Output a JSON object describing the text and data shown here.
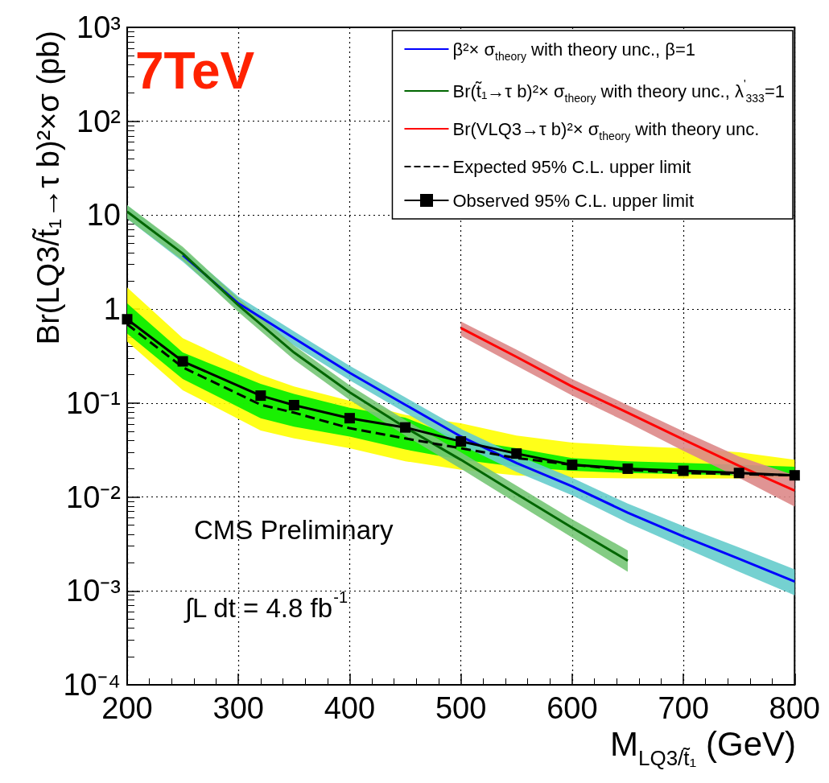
{
  "chart_data": {
    "type": "line",
    "xlabel": "M$_{LQ3/t̃₁}$ (GeV)",
    "ylabel": "Br(LQ3/t̃₁→τ b)²×σ (pb)",
    "annotations": [
      "7TeV",
      "CMS Preliminary",
      "∫L dt = 4.8 fb$^{-1}$"
    ],
    "log": "y",
    "grid": true,
    "legend": "top right",
    "xlim": [
      200,
      800
    ],
    "xticks": [
      200,
      300,
      400,
      500,
      600,
      700,
      800
    ],
    "ylim": [
      0.0001,
      1000
    ],
    "yticks": [
      {
        "value": 0.0001,
        "label": "10⁻⁴"
      },
      {
        "value": 0.001,
        "label": "10⁻³"
      },
      {
        "value": 0.01,
        "label": "10⁻²"
      },
      {
        "value": 0.1,
        "label": "10⁻¹"
      },
      1,
      10,
      {
        "value": 100,
        "label": "10²"
      },
      {
        "value": 1000,
        "label": "10³"
      }
    ],
    "series": [
      {
        "type": "area",
        "color": "#ffff00",
        "x": [
          200,
          250,
          320,
          350,
          400,
          450,
          500,
          550,
          600,
          650,
          700,
          750,
          800
        ],
        "values": [
          null,
          null,
          null,
          null,
          null,
          null,
          null,
          null,
          null,
          null,
          null,
          null,
          null
        ],
        "lower": [
          0.45,
          0.137,
          0.051,
          0.042,
          0.033,
          0.024,
          0.0195,
          0.017,
          0.016,
          0.0158,
          0.0157,
          0.0158,
          0.016
        ],
        "upper": [
          1.7,
          0.49,
          0.2,
          0.15,
          0.106,
          0.075,
          0.061,
          0.045,
          0.038,
          0.035,
          0.033,
          0.03,
          0.025
        ]
      },
      {
        "type": "area",
        "color": "#00ee00",
        "x": [
          200,
          250,
          320,
          350,
          400,
          450,
          500,
          550,
          600,
          650,
          700,
          750,
          800
        ],
        "values": [
          null,
          null,
          null,
          null,
          null,
          null,
          null,
          null,
          null,
          null,
          null,
          null,
          null
        ],
        "lower": [
          0.55,
          0.18,
          0.069,
          0.056,
          0.044,
          0.032,
          0.025,
          0.021,
          0.019,
          0.018,
          0.0175,
          0.017,
          0.0165
        ],
        "upper": [
          1.15,
          0.345,
          0.16,
          0.125,
          0.089,
          0.07,
          0.041,
          0.033,
          0.026,
          0.024,
          0.023,
          0.022,
          0.021
        ]
      },
      {
        "type": "area",
        "color": "#66cccc",
        "x": [
          200,
          250,
          300,
          350,
          400,
          450,
          500,
          550,
          600,
          650,
          700,
          750,
          800
        ],
        "values": [
          null,
          null,
          null,
          null,
          null,
          null,
          null,
          null,
          null,
          null,
          null,
          null,
          null
        ],
        "lower": [
          9.2,
          3.2,
          0.97,
          0.41,
          0.175,
          0.079,
          0.036,
          0.0185,
          0.0104,
          0.0053,
          0.0029,
          0.0016,
          0.0009
        ],
        "upper": [
          12.8,
          4.4,
          1.36,
          0.58,
          0.25,
          0.115,
          0.053,
          0.028,
          0.016,
          0.0085,
          0.0049,
          0.0029,
          0.0017
        ]
      },
      {
        "type": "area",
        "color": "#77c777",
        "x": [
          200,
          250,
          300,
          350,
          400,
          450,
          500,
          550,
          600,
          650
        ],
        "values": [
          null,
          null,
          null,
          null,
          null,
          null,
          null,
          null,
          null,
          null
        ],
        "lower": [
          9.2,
          3.3,
          0.93,
          0.29,
          0.108,
          0.045,
          0.02,
          0.0086,
          0.0037,
          0.0016
        ],
        "upper": [
          12.8,
          4.6,
          1.3,
          0.41,
          0.155,
          0.066,
          0.03,
          0.0132,
          0.0058,
          0.0027
        ]
      },
      {
        "type": "area",
        "color": "#dd8888",
        "x": [
          500,
          550,
          600,
          650,
          700,
          750,
          800
        ],
        "values": [
          null,
          null,
          null,
          null,
          null,
          null,
          null
        ],
        "lower": [
          0.52,
          0.25,
          0.12,
          0.062,
          0.031,
          0.016,
          0.0079
        ],
        "upper": [
          0.74,
          0.37,
          0.18,
          0.095,
          0.05,
          0.027,
          0.017
        ]
      },
      {
        "name": "β²× σ$_{theory}$ with theory unc., β=1",
        "color": "#0000ff",
        "marker": "none",
        "x": [
          250,
          300,
          350,
          400,
          450,
          500,
          550,
          600,
          650,
          700,
          750,
          800
        ],
        "values": [
          3.76,
          1.15,
          0.49,
          0.21,
          0.096,
          0.044,
          0.023,
          0.013,
          0.0068,
          0.0038,
          0.0022,
          0.00126
        ]
      },
      {
        "name": "Br(t̃₁→τ b)²× σ$_{theory}$ with theory unc., λ$^{'}$$_{333}$=1",
        "color": "#006600",
        "marker": "none",
        "x": [
          200,
          250,
          300,
          350,
          400,
          450,
          500,
          550,
          600,
          650
        ],
        "values": [
          10.9,
          3.9,
          1.1,
          0.345,
          0.13,
          0.055,
          0.0249,
          0.0108,
          0.0047,
          0.0021
        ]
      },
      {
        "name": "Br(VLQ3→τ b)²× σ$_{theory}$ with theory unc.",
        "color": "#ff0000",
        "marker": "none",
        "x": [
          500,
          550,
          600,
          650,
          700,
          750,
          800
        ],
        "values": [
          0.63,
          0.31,
          0.15,
          0.079,
          0.041,
          0.0215,
          0.0117
        ]
      },
      {
        "name": "Expected 95% C.L. upper limit",
        "color": "#000000",
        "marker": "none",
        "line_style": "dashed",
        "x": [
          200,
          250,
          320,
          350,
          400,
          450,
          500,
          550,
          600,
          650,
          700,
          750,
          800
        ],
        "values": [
          0.69,
          0.24,
          0.096,
          0.079,
          0.054,
          0.042,
          0.033,
          0.026,
          0.022,
          0.0195,
          0.018,
          0.0175,
          0.017
        ]
      },
      {
        "name": "Observed 95% C.L. upper limit",
        "color": "#000000",
        "marker": "square",
        "line_style": "solid",
        "x": [
          200,
          250,
          320,
          350,
          400,
          450,
          500,
          550,
          600,
          650,
          700,
          750,
          800
        ],
        "values": [
          0.78,
          0.278,
          0.12,
          0.095,
          0.069,
          0.055,
          0.039,
          0.029,
          0.022,
          0.02,
          0.019,
          0.018,
          0.017
        ]
      }
    ]
  }
}
